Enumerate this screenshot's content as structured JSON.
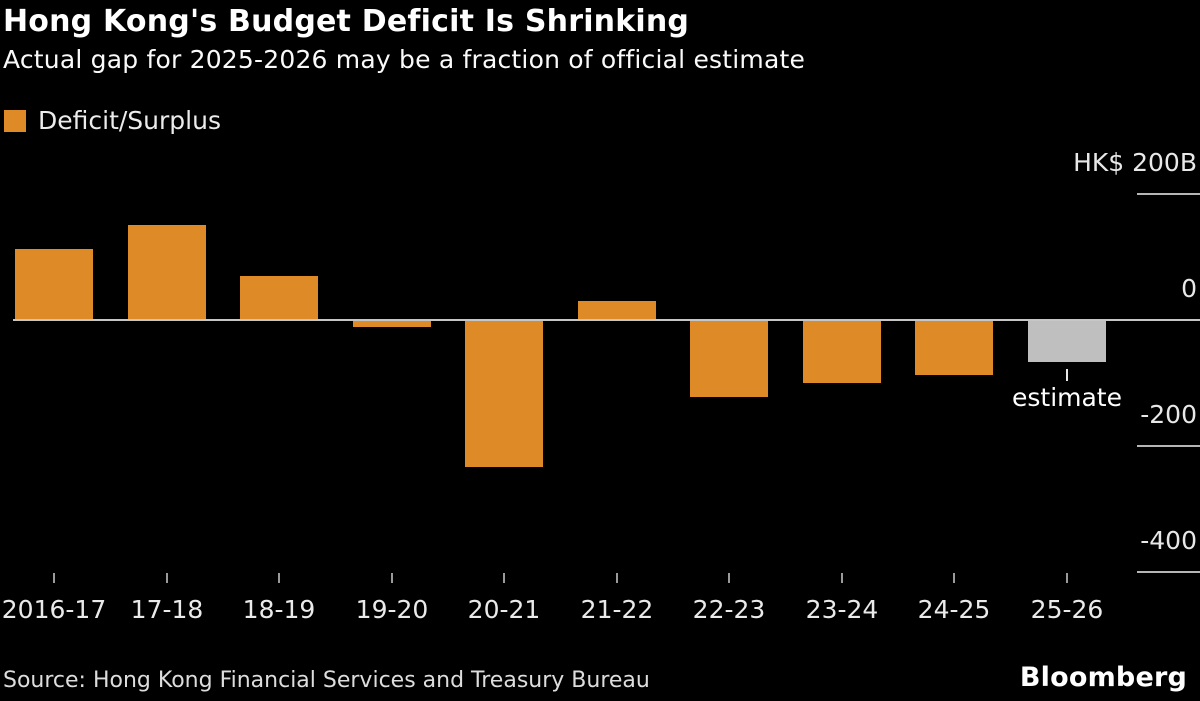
{
  "header": {
    "title": "Hong Kong's Budget Deficit Is Shrinking",
    "subtitle": "Actual gap for 2025-2026 may be a fraction of official estimate"
  },
  "legend": {
    "label": "Deficit/Surplus",
    "swatch_color": "#DE8B27"
  },
  "chart_data": {
    "type": "bar",
    "title": "Hong Kong's Budget Deficit Is Shrinking",
    "subtitle": "Actual gap for 2025-2026 may be a fraction of official estimate",
    "categories": [
      "2016-17",
      "17-18",
      "18-19",
      "19-20",
      "20-21",
      "21-22",
      "22-23",
      "23-24",
      "24-25",
      "25-26"
    ],
    "values": [
      111,
      149,
      69,
      -11,
      -233,
      29,
      -122,
      -100,
      -87,
      -67
    ],
    "bar_colors": [
      "#DE8B27",
      "#DE8B27",
      "#DE8B27",
      "#DE8B27",
      "#DE8B27",
      "#DE8B27",
      "#DE8B27",
      "#DE8B27",
      "#DE8B27",
      "#BFBFBF"
    ],
    "xlabel": "",
    "ylabel": "",
    "ylim": [
      -420,
      260
    ],
    "grid": "right-side tick segments plus full-width zero baseline",
    "legend_position": "top-left",
    "legend_entries": [
      {
        "label": "Deficit/Surplus",
        "color": "#DE8B27"
      }
    ],
    "y_axis": {
      "side": "right",
      "ticks": [
        {
          "label": "HK$ 200B",
          "value": 200
        },
        {
          "label": "0",
          "value": 0
        },
        {
          "label": "-200",
          "value": -200
        },
        {
          "label": "-400",
          "value": -400
        }
      ]
    },
    "annotation": {
      "text": "estimate",
      "category": "25-26",
      "category_index": 9
    },
    "colors": {
      "background": "#000000",
      "bar_default": "#DE8B27",
      "bar_estimate": "#BFBFBF",
      "baseline": "#C6C6C6",
      "gridline": "#B5B5B5"
    }
  },
  "footer": {
    "source": "Source: Hong Kong Financial Services and Treasury Bureau",
    "brand": "Bloomberg"
  }
}
